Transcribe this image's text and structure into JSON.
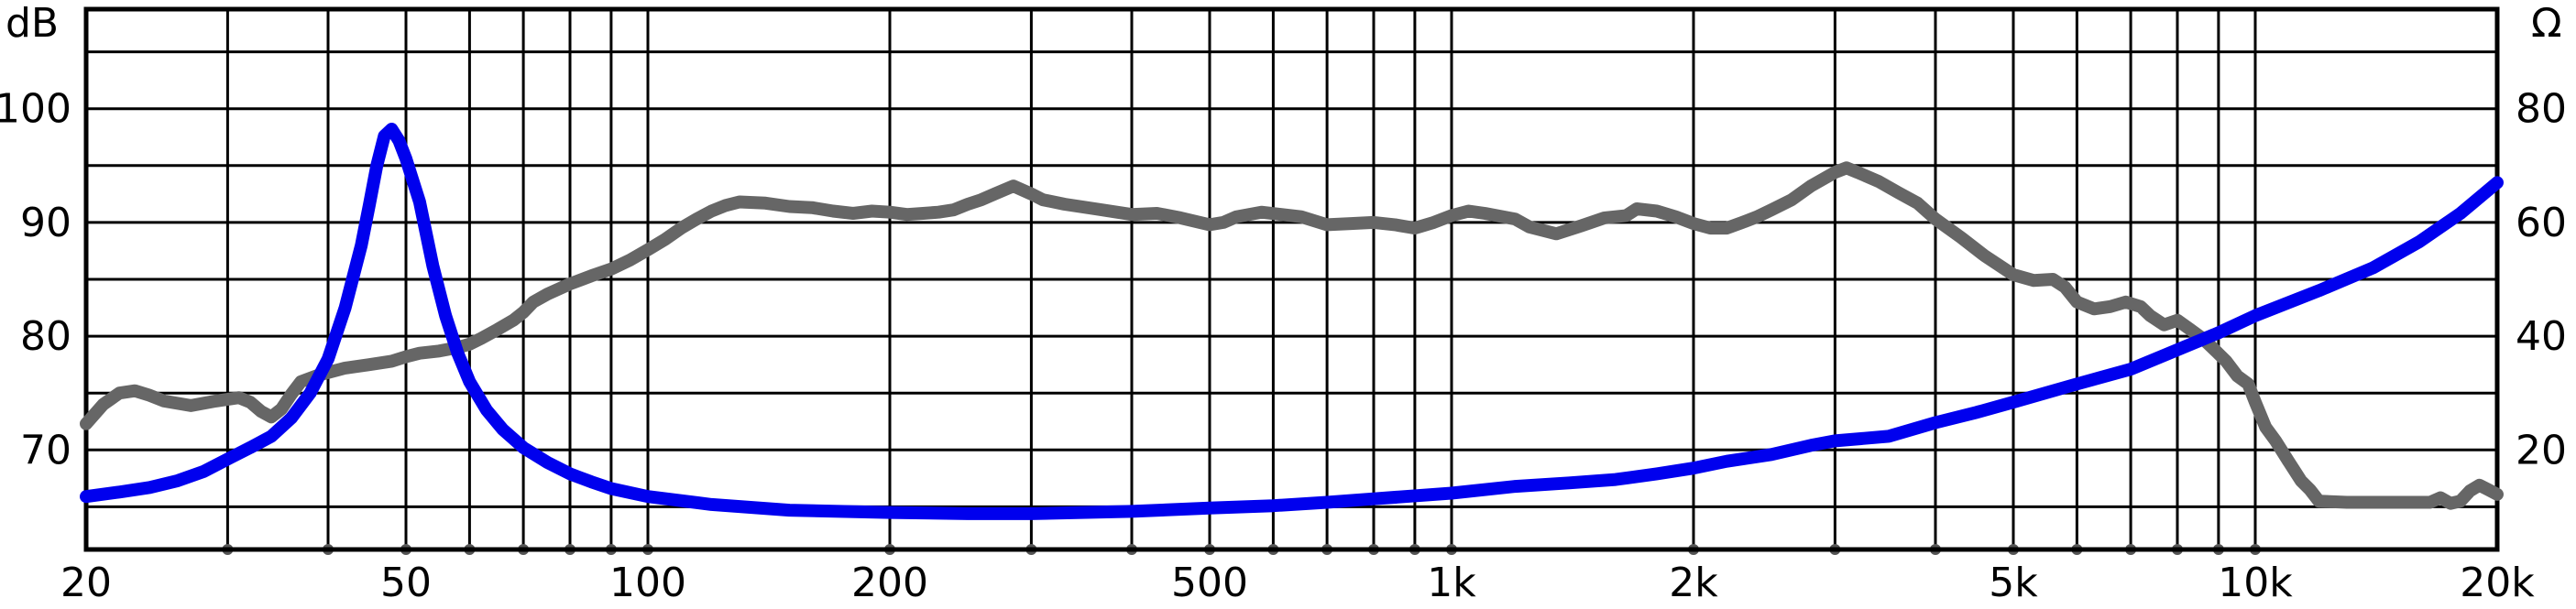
{
  "chart_data": {
    "type": "line",
    "title": "",
    "x_scale": "log",
    "xlim": [
      20,
      20000
    ],
    "y_left": {
      "unit": "dB",
      "ticks": [
        70,
        80,
        90,
        100
      ],
      "lim": [
        61.25,
        108.75
      ]
    },
    "y_right": {
      "unit": "Ω",
      "ticks": [
        20,
        40,
        60,
        80
      ],
      "lim": [
        2.5,
        97.5
      ]
    },
    "x_tick_labels": [
      {
        "value": 20,
        "label": "20"
      },
      {
        "value": 50,
        "label": "50"
      },
      {
        "value": 100,
        "label": "100"
      },
      {
        "value": 200,
        "label": "200"
      },
      {
        "value": 500,
        "label": "500"
      },
      {
        "value": 1000,
        "label": "1k"
      },
      {
        "value": 2000,
        "label": "2k"
      },
      {
        "value": 5000,
        "label": "5k"
      },
      {
        "value": 10000,
        "label": "10k"
      },
      {
        "value": 20000,
        "label": "20k"
      }
    ],
    "x_grid": [
      30,
      40,
      50,
      60,
      70,
      80,
      90,
      100,
      200,
      300,
      400,
      500,
      600,
      700,
      800,
      900,
      1000,
      2000,
      3000,
      4000,
      5000,
      6000,
      7000,
      8000,
      9000,
      10000,
      20000
    ],
    "y_grid_dB": [
      65,
      70,
      75,
      80,
      85,
      90,
      95,
      100,
      105
    ],
    "grid": true,
    "series": [
      {
        "axis": "left",
        "color": "#666666",
        "points": [
          [
            20,
            72.3
          ],
          [
            21,
            74.0
          ],
          [
            22,
            75.0
          ],
          [
            23,
            75.2
          ],
          [
            24,
            74.8
          ],
          [
            25,
            74.3
          ],
          [
            27,
            73.9
          ],
          [
            29,
            74.3
          ],
          [
            31,
            74.6
          ],
          [
            32,
            74.2
          ],
          [
            33,
            73.4
          ],
          [
            34,
            72.9
          ],
          [
            35,
            73.6
          ],
          [
            36,
            74.9
          ],
          [
            37,
            76.0
          ],
          [
            39,
            76.6
          ],
          [
            42,
            77.2
          ],
          [
            45,
            77.5
          ],
          [
            48,
            77.8
          ],
          [
            50,
            78.2
          ],
          [
            52,
            78.5
          ],
          [
            55,
            78.7
          ],
          [
            58,
            79.0
          ],
          [
            60,
            79.3
          ],
          [
            62,
            79.8
          ],
          [
            65,
            80.6
          ],
          [
            68,
            81.4
          ],
          [
            70,
            82.1
          ],
          [
            72,
            83.0
          ],
          [
            75,
            83.7
          ],
          [
            80,
            84.6
          ],
          [
            85,
            85.3
          ],
          [
            90,
            85.9
          ],
          [
            95,
            86.7
          ],
          [
            100,
            87.6
          ],
          [
            105,
            88.5
          ],
          [
            110,
            89.5
          ],
          [
            115,
            90.3
          ],
          [
            120,
            91.0
          ],
          [
            125,
            91.5
          ],
          [
            130,
            91.8
          ],
          [
            140,
            91.7
          ],
          [
            150,
            91.4
          ],
          [
            160,
            91.3
          ],
          [
            170,
            91.0
          ],
          [
            180,
            90.8
          ],
          [
            190,
            91.0
          ],
          [
            200,
            90.9
          ],
          [
            210,
            90.7
          ],
          [
            220,
            90.8
          ],
          [
            230,
            90.9
          ],
          [
            240,
            91.1
          ],
          [
            250,
            91.6
          ],
          [
            260,
            92.0
          ],
          [
            270,
            92.5
          ],
          [
            285,
            93.2
          ],
          [
            300,
            92.5
          ],
          [
            310,
            92.0
          ],
          [
            330,
            91.6
          ],
          [
            360,
            91.2
          ],
          [
            400,
            90.7
          ],
          [
            430,
            90.8
          ],
          [
            460,
            90.4
          ],
          [
            500,
            89.8
          ],
          [
            520,
            90.0
          ],
          [
            540,
            90.5
          ],
          [
            580,
            90.9
          ],
          [
            650,
            90.5
          ],
          [
            700,
            89.8
          ],
          [
            750,
            89.9
          ],
          [
            800,
            90.0
          ],
          [
            850,
            89.8
          ],
          [
            900,
            89.5
          ],
          [
            950,
            90.0
          ],
          [
            1000,
            90.6
          ],
          [
            1050,
            91.0
          ],
          [
            1100,
            90.8
          ],
          [
            1200,
            90.3
          ],
          [
            1250,
            89.6
          ],
          [
            1350,
            89.0
          ],
          [
            1450,
            89.7
          ],
          [
            1550,
            90.4
          ],
          [
            1650,
            90.6
          ],
          [
            1700,
            91.2
          ],
          [
            1800,
            91.0
          ],
          [
            1900,
            90.5
          ],
          [
            2000,
            89.9
          ],
          [
            2100,
            89.5
          ],
          [
            2200,
            89.5
          ],
          [
            2300,
            90.0
          ],
          [
            2400,
            90.5
          ],
          [
            2500,
            91.1
          ],
          [
            2650,
            92.0
          ],
          [
            2800,
            93.2
          ],
          [
            3000,
            94.4
          ],
          [
            3100,
            94.8
          ],
          [
            3200,
            94.4
          ],
          [
            3400,
            93.6
          ],
          [
            3600,
            92.6
          ],
          [
            3800,
            91.7
          ],
          [
            4000,
            90.3
          ],
          [
            4300,
            88.7
          ],
          [
            4600,
            87.1
          ],
          [
            5000,
            85.4
          ],
          [
            5300,
            84.9
          ],
          [
            5600,
            85.0
          ],
          [
            5800,
            84.3
          ],
          [
            6000,
            83.0
          ],
          [
            6300,
            82.4
          ],
          [
            6600,
            82.6
          ],
          [
            6900,
            83.0
          ],
          [
            7200,
            82.6
          ],
          [
            7400,
            81.8
          ],
          [
            7700,
            81.0
          ],
          [
            8000,
            81.4
          ],
          [
            8300,
            80.6
          ],
          [
            8600,
            79.8
          ],
          [
            8900,
            78.8
          ],
          [
            9200,
            77.8
          ],
          [
            9500,
            76.5
          ],
          [
            9800,
            75.8
          ],
          [
            10000,
            74.2
          ],
          [
            10300,
            72.0
          ],
          [
            10600,
            70.8
          ],
          [
            11000,
            69.0
          ],
          [
            11400,
            67.3
          ],
          [
            11700,
            66.5
          ],
          [
            12000,
            65.5
          ],
          [
            13000,
            65.4
          ],
          [
            14000,
            65.4
          ],
          [
            15000,
            65.4
          ],
          [
            16500,
            65.4
          ],
          [
            17000,
            65.8
          ],
          [
            17500,
            65.3
          ],
          [
            18000,
            65.5
          ],
          [
            18500,
            66.4
          ],
          [
            19000,
            66.9
          ],
          [
            19500,
            66.5
          ],
          [
            20000,
            66.1
          ]
        ]
      },
      {
        "axis": "left",
        "color": "#0000ee",
        "points": [
          [
            20,
            65.9
          ],
          [
            22,
            66.3
          ],
          [
            24,
            66.7
          ],
          [
            26,
            67.3
          ],
          [
            28,
            68.1
          ],
          [
            30,
            69.2
          ],
          [
            32,
            70.2
          ],
          [
            34,
            71.2
          ],
          [
            36,
            72.8
          ],
          [
            38,
            75.0
          ],
          [
            40,
            78.0
          ],
          [
            42,
            82.5
          ],
          [
            44,
            88.0
          ],
          [
            45,
            91.5
          ],
          [
            46,
            95.0
          ],
          [
            47,
            97.6
          ],
          [
            48,
            98.2
          ],
          [
            49,
            97.2
          ],
          [
            50,
            95.6
          ],
          [
            52,
            91.8
          ],
          [
            54,
            86.2
          ],
          [
            56,
            81.8
          ],
          [
            58,
            78.5
          ],
          [
            60,
            76.0
          ],
          [
            63,
            73.5
          ],
          [
            66,
            71.8
          ],
          [
            70,
            70.2
          ],
          [
            75,
            68.9
          ],
          [
            80,
            67.9
          ],
          [
            85,
            67.2
          ],
          [
            90,
            66.6
          ],
          [
            100,
            65.9
          ],
          [
            120,
            65.2
          ],
          [
            150,
            64.7
          ],
          [
            200,
            64.5
          ],
          [
            250,
            64.4
          ],
          [
            300,
            64.4
          ],
          [
            400,
            64.6
          ],
          [
            500,
            64.9
          ],
          [
            600,
            65.1
          ],
          [
            700,
            65.4
          ],
          [
            800,
            65.7
          ],
          [
            1000,
            66.2
          ],
          [
            1200,
            66.8
          ],
          [
            1400,
            67.1
          ],
          [
            1600,
            67.4
          ],
          [
            1800,
            67.9
          ],
          [
            2000,
            68.4
          ],
          [
            2200,
            69.0
          ],
          [
            2500,
            69.6
          ],
          [
            2800,
            70.4
          ],
          [
            3000,
            70.8
          ],
          [
            3500,
            71.2
          ],
          [
            4000,
            72.4
          ],
          [
            4500,
            73.3
          ],
          [
            5000,
            74.2
          ],
          [
            6000,
            75.8
          ],
          [
            7000,
            77.1
          ],
          [
            8000,
            78.8
          ],
          [
            9000,
            80.3
          ],
          [
            10000,
            81.8
          ],
          [
            12000,
            84.0
          ],
          [
            14000,
            86.0
          ],
          [
            16000,
            88.3
          ],
          [
            18000,
            90.8
          ],
          [
            20000,
            93.5
          ]
        ]
      }
    ]
  }
}
